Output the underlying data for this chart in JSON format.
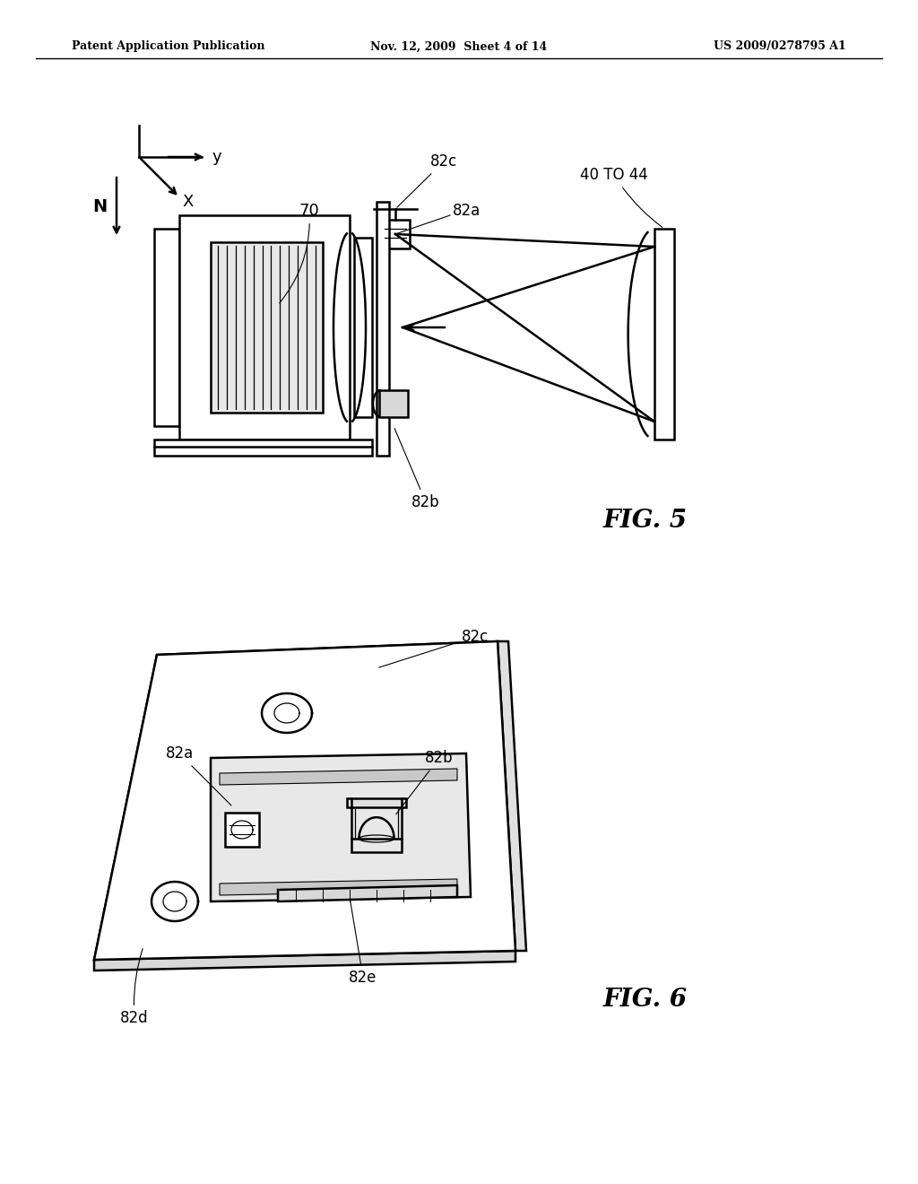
{
  "bg_color": "#ffffff",
  "line_color": "#000000",
  "header_left": "Patent Application Publication",
  "header_mid": "Nov. 12, 2009  Sheet 4 of 14",
  "header_right": "US 2009/0278795 A1",
  "fig5_label": "FIG. 5",
  "fig6_label": "FIG. 6"
}
